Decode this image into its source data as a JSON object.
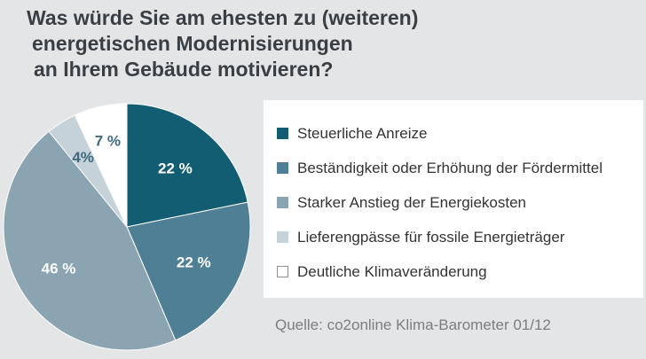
{
  "title_lines": [
    "Was würde Sie am ehesten zu (weiteren)",
    "energetischen Modernisierungen",
    "an Ihrem Gebäude motivieren?"
  ],
  "source": "Quelle: co2online Klima-Barometer 01/12",
  "chart_data": {
    "type": "pie",
    "title": "Was würde Sie am ehesten zu (weiteren) energetischen Modernisierungen an Ihrem Gebäude motivieren?",
    "legend_position": "right",
    "slices": [
      {
        "label": "Steuerliche Anreize",
        "value": 22,
        "value_label": "22 %",
        "color": "#135d72",
        "label_color": "#ffffff"
      },
      {
        "label": "Beständigkeit oder Erhöhung der Fördermittel",
        "value": 22,
        "value_label": "22 %",
        "color": "#4f7f94",
        "label_color": "#ffffff"
      },
      {
        "label": "Starker Anstieg der Energiekosten",
        "value": 46,
        "value_label": "46 %",
        "color": "#8aa4b2",
        "label_color": "#ffffff"
      },
      {
        "label": "Lieferengpässe für fossile Energieträger",
        "value": 4,
        "value_label": "4%",
        "color": "#c5d2d9",
        "label_color": "#3e6a7d"
      },
      {
        "label": "Deutliche Klimaveränderung",
        "value": 7,
        "value_label": "7 %",
        "color": "#ffffff",
        "label_color": "#3e6a7d"
      }
    ]
  }
}
